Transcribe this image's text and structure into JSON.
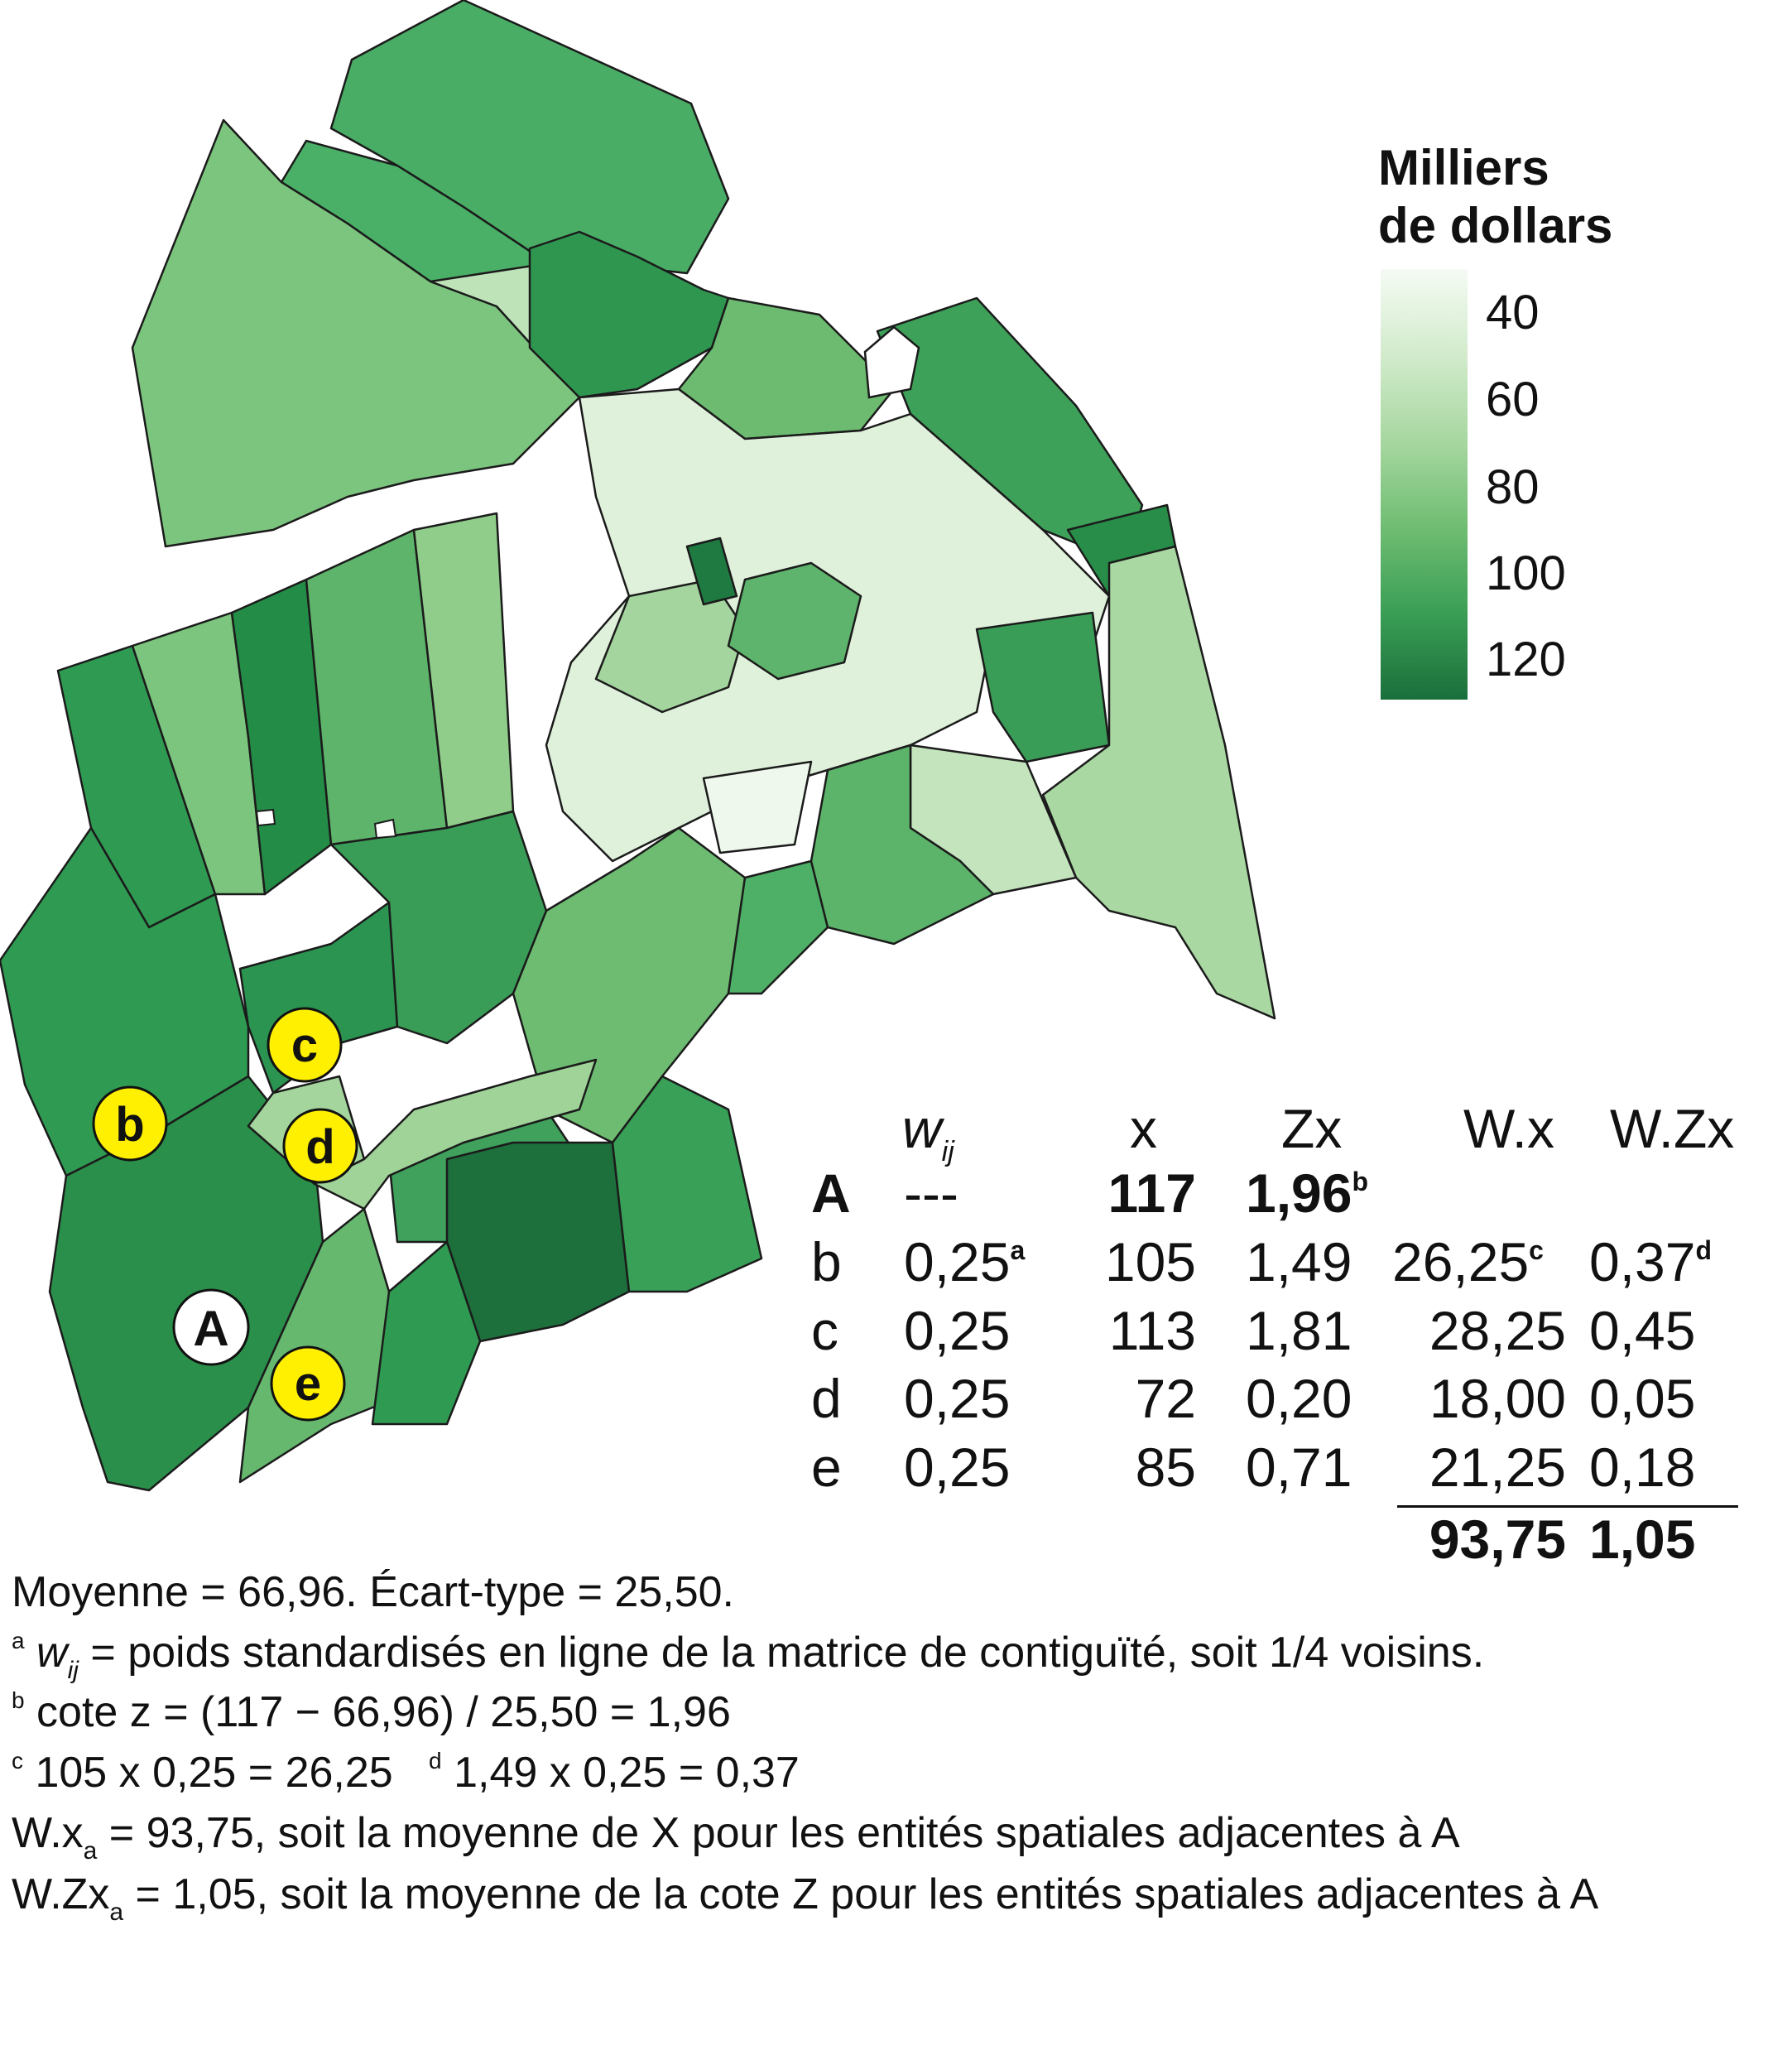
{
  "legend": {
    "title_line1": "Milliers",
    "title_line2": "de dollars",
    "ticks": [
      "40",
      "60",
      "80",
      "100",
      "120"
    ],
    "colors": [
      "#f5fbf4",
      "#d2ebcc",
      "#a7d7a0",
      "#6fbd72",
      "#3a9e55",
      "#1a6f3b"
    ]
  },
  "map_labels": {
    "A": "A",
    "b": "b",
    "c": "c",
    "d": "d",
    "e": "e",
    "highlight_color": "#ffef00"
  },
  "table": {
    "headers": {
      "w": "w",
      "w_sub": "ij",
      "x": "x",
      "zx": "Zx",
      "wx": "W.x",
      "wzx": "W.Zx"
    },
    "rows": [
      {
        "id": "A",
        "w": "---",
        "w_sup": "",
        "x": "117",
        "zx": "1,96",
        "zx_sup": "b",
        "wx": "",
        "wx_sup": "",
        "wzx": "",
        "wzx_sup": ""
      },
      {
        "id": "b",
        "w": "0,25",
        "w_sup": "a",
        "x": "105",
        "zx": "1,49",
        "zx_sup": "",
        "wx": "26,25",
        "wx_sup": "c",
        "wzx": "0,37",
        "wzx_sup": "d"
      },
      {
        "id": "c",
        "w": "0,25",
        "w_sup": "",
        "x": "113",
        "zx": "1,81",
        "zx_sup": "",
        "wx": "28,25",
        "wx_sup": "",
        "wzx": "0,45",
        "wzx_sup": ""
      },
      {
        "id": "d",
        "w": "0,25",
        "w_sup": "",
        "x": "72",
        "zx": "0,20",
        "zx_sup": "",
        "wx": "18,00",
        "wx_sup": "",
        "wzx": "0,05",
        "wzx_sup": ""
      },
      {
        "id": "e",
        "w": "0,25",
        "w_sup": "",
        "x": "85",
        "zx": "0,71",
        "zx_sup": "",
        "wx": "21,25",
        "wx_sup": "",
        "wzx": "0,18",
        "wzx_sup": ""
      }
    ],
    "totals": {
      "wx": "93,75",
      "wzx": "1,05"
    }
  },
  "notes": {
    "line1": "Moyenne = 66,96. Écart-type = 25,50.",
    "line2_sup": "a",
    "line2_w": "w",
    "line2_sub": "ij",
    "line2_text": " = poids standardisés en ligne de la matrice de contiguïté, soit 1/4 voisins.",
    "line3_sup": "b",
    "line3_text": " cote z = (117 − 66,96) / 25,50 = 1,96",
    "line4_sup_c": "c",
    "line4_text_c": " 105 x 0,25 = 26,25",
    "line4_sup_d": "d",
    "line4_text_d": " 1,49 x 0,25 = 0,37",
    "line5_pre": "W.x",
    "line5_sub": "a",
    "line5_text": " = 93,75, soit la moyenne de X pour les entités spatiales adjacentes à A",
    "line6_pre": "W.Zx",
    "line6_sub": "a",
    "line6_text": " = 1,05, soit la moyenne de la cote Z pour les entités spatiales adjacentes à A"
  }
}
